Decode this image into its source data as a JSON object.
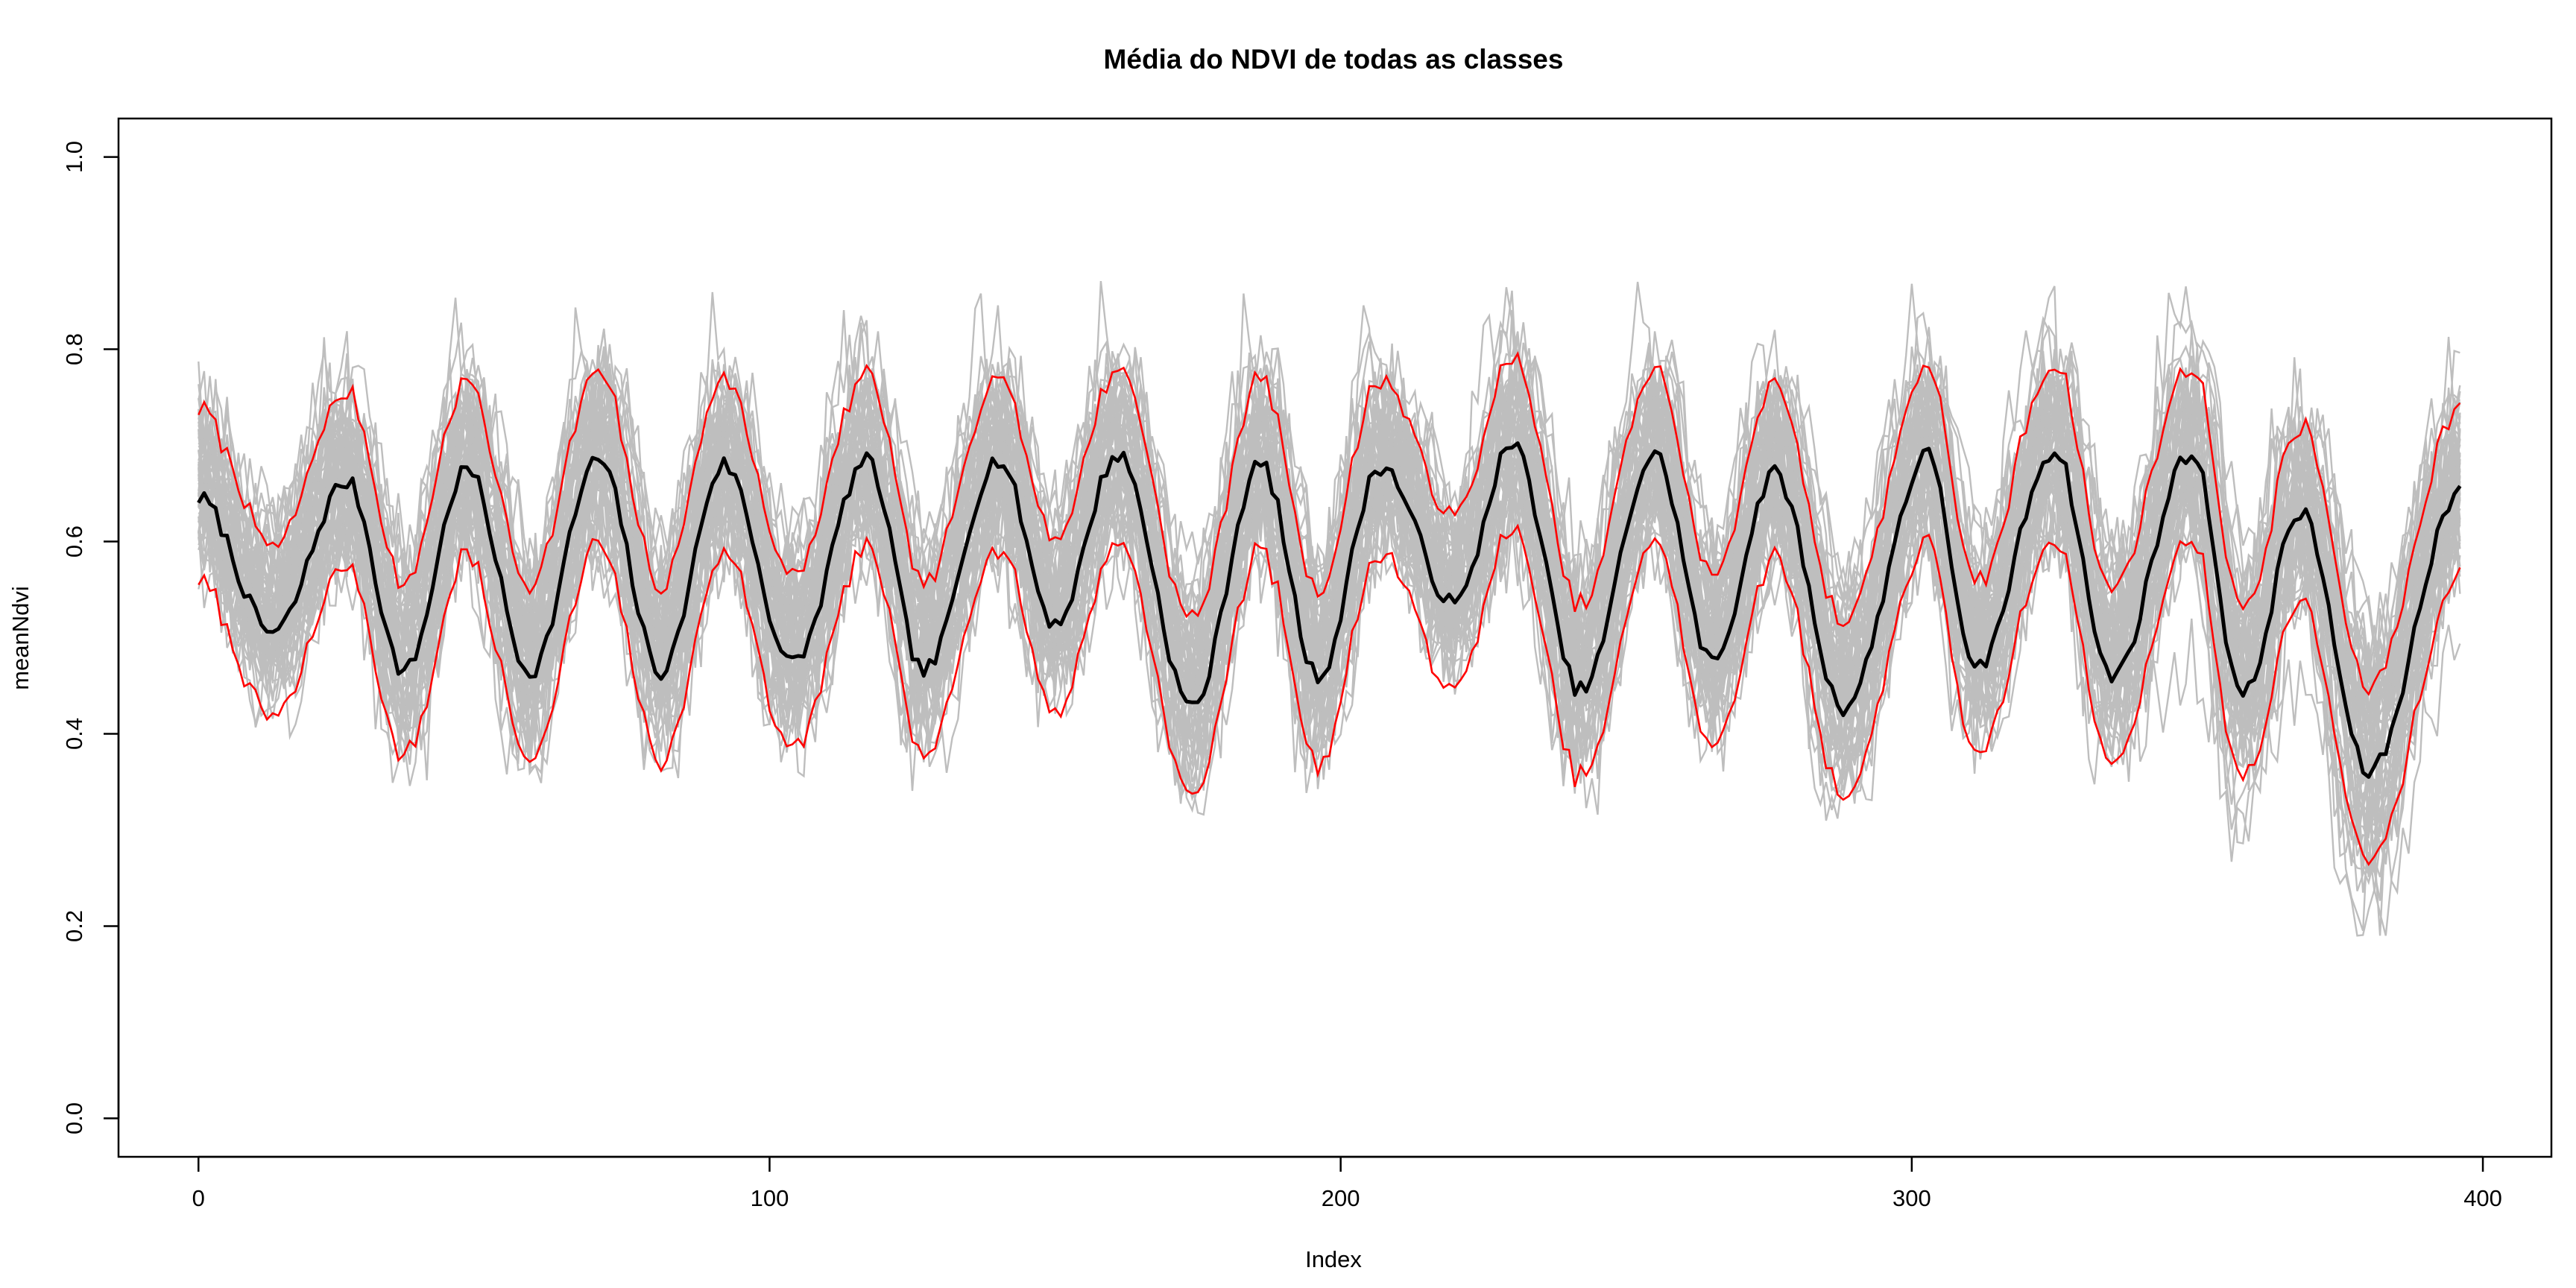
{
  "chart_data": {
    "type": "line",
    "title": "Média do NDVI de todas as classes",
    "xlabel": "Index",
    "ylabel": "meanNdvi",
    "xlim": [
      -14,
      412
    ],
    "ylim": [
      -0.04,
      1.04
    ],
    "x_ticks": [
      0,
      100,
      200,
      300,
      400
    ],
    "x_tick_labels": [
      "0",
      "100",
      "200",
      "300",
      "400"
    ],
    "y_ticks": [
      0.0,
      0.2,
      0.4,
      0.6,
      0.8,
      1.0
    ],
    "y_tick_labels": [
      "0.0",
      "0.2",
      "0.4",
      "0.6",
      "0.8",
      "1.0"
    ],
    "grid": false,
    "legend": "none",
    "n_points": 397,
    "colors": {
      "individual": "#bebebe",
      "mean": "#000000",
      "band": "#ff0000"
    },
    "series": [
      {
        "role": "individual",
        "count": 60,
        "style": "thin gray lines",
        "note_values": "individual NDVI time series (approx. 60 classes), values between about 0.19 and 0.89"
      },
      {
        "role": "mean",
        "style": "thick black line",
        "cycle_period": 22.6,
        "peaks": [
          {
            "x": 0,
            "y": 0.645
          },
          {
            "x": 26,
            "y": 0.662
          },
          {
            "x": 47,
            "y": 0.675
          },
          {
            "x": 70,
            "y": 0.685
          },
          {
            "x": 92,
            "y": 0.68
          },
          {
            "x": 117,
            "y": 0.683
          },
          {
            "x": 140,
            "y": 0.685
          },
          {
            "x": 161,
            "y": 0.69
          },
          {
            "x": 186,
            "y": 0.68
          },
          {
            "x": 207,
            "y": 0.678
          },
          {
            "x": 230,
            "y": 0.7
          },
          {
            "x": 255,
            "y": 0.69
          },
          {
            "x": 276,
            "y": 0.67
          },
          {
            "x": 303,
            "y": 0.69
          },
          {
            "x": 325,
            "y": 0.695
          },
          {
            "x": 349,
            "y": 0.693
          },
          {
            "x": 368,
            "y": 0.63
          },
          {
            "x": 396,
            "y": 0.65
          }
        ],
        "troughs": [
          {
            "x": 13,
            "y": 0.505
          },
          {
            "x": 36,
            "y": 0.465
          },
          {
            "x": 58,
            "y": 0.465
          },
          {
            "x": 81,
            "y": 0.465
          },
          {
            "x": 104,
            "y": 0.473
          },
          {
            "x": 127,
            "y": 0.465
          },
          {
            "x": 150,
            "y": 0.515
          },
          {
            "x": 174,
            "y": 0.428
          },
          {
            "x": 196,
            "y": 0.46
          },
          {
            "x": 220,
            "y": 0.535
          },
          {
            "x": 242,
            "y": 0.445
          },
          {
            "x": 265,
            "y": 0.475
          },
          {
            "x": 288,
            "y": 0.428
          },
          {
            "x": 311,
            "y": 0.465
          },
          {
            "x": 335,
            "y": 0.46
          },
          {
            "x": 358,
            "y": 0.44
          },
          {
            "x": 380,
            "y": 0.36
          }
        ]
      },
      {
        "role": "upper-band",
        "style": "thin red line (mean + 1 sd)",
        "offset": 0.09
      },
      {
        "role": "lower-band",
        "style": "thin red line (mean - 1 sd)",
        "offset": 0.09
      }
    ]
  }
}
